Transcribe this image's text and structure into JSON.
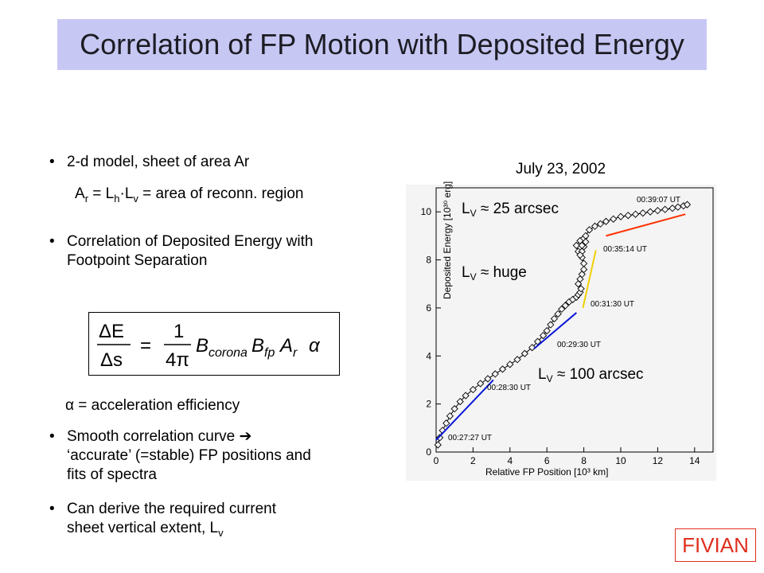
{
  "title": "Correlation of FP Motion with Deposited Energy",
  "bullets": {
    "b1": "2-d model, sheet of area Ar",
    "b1_sub_pre": "A",
    "b1_sub_r": "r",
    "b1_sub_mid": " = L",
    "b1_sub_h": "h",
    "b1_sub_dot": "·L",
    "b1_sub_v": "v",
    "b1_sub_post": " = area of reconn. region",
    "b2_line1": "Correlation of Deposited Energy with",
    "b2_line2": "Footpoint Separation",
    "alpha_line": "α = acceleration efficiency",
    "b3_line1": "Smooth correlation curve ➔",
    "b3_line2": "‘accurate’ (=stable) FP positions and",
    "b3_line3": "fits of spectra",
    "b4_line1": "Can derive the required current",
    "b4_line2": "sheet vertical extent, L",
    "b4_sub": "v"
  },
  "formula": {
    "lhs_num": "ΔE",
    "lhs_den": "Δs",
    "eq": "=",
    "frac_num": "1",
    "frac_den": "4π",
    "B": "B",
    "B_sub1": "corona",
    "B2": "B",
    "B_sub2": "fp",
    "A": "A",
    "A_sub": "r",
    "alpha": "α"
  },
  "chart_title": "July 23, 2002",
  "annotations": {
    "lv1_pre": "L",
    "lv1_sub": "V",
    "lv1_post": " ≈ 25 arcsec",
    "lv2_pre": "L",
    "lv2_sub": "V",
    "lv2_post": " ≈ huge",
    "lv3_pre": "L",
    "lv3_sub": "V",
    "lv3_post": " ≈ 100 arcsec",
    "t1": "00:39:07 UT",
    "t2": "00:35:14 UT",
    "t3": "00:31:30 UT",
    "t4": "00:29:30 UT",
    "t5": "00:28:30 UT",
    "t6": "00:27:27 UT"
  },
  "fivian": "FIVIAN",
  "chart_data": {
    "type": "scatter",
    "title": "",
    "xlabel": "Relative FP Position  [10³ km]",
    "ylabel": "Deposited Energy  [10³⁰ erg]",
    "xlim": [
      0,
      15
    ],
    "ylim": [
      0,
      11
    ],
    "xticks": [
      "0",
      "2",
      "4",
      "6",
      "8",
      "10",
      "12",
      "14"
    ],
    "yticks": [
      "0",
      "2",
      "4",
      "6",
      "8",
      "10"
    ],
    "series": [
      {
        "x": [
          0.1,
          0.2,
          0.35,
          0.55,
          0.75,
          1.0,
          1.3,
          1.6,
          2.0,
          2.4,
          2.8,
          3.2,
          3.6,
          4.0,
          4.4,
          4.8,
          5.2,
          5.5,
          5.8,
          6.0,
          6.2,
          6.4,
          6.6,
          6.8,
          7.0,
          7.2,
          7.4,
          7.6,
          7.7,
          7.8,
          7.85,
          7.7,
          7.8,
          7.9,
          8.0,
          8.0,
          7.9,
          7.7,
          7.6,
          7.8,
          8.0,
          8.1,
          8.0,
          7.9,
          7.8,
          7.9,
          8.1,
          8.3,
          8.6,
          8.9,
          9.2,
          9.6,
          10.0,
          10.4,
          10.8,
          11.2,
          11.6,
          12.0,
          12.4,
          12.8,
          13.1,
          13.4,
          13.6
        ],
        "y": [
          0.3,
          0.6,
          0.9,
          1.2,
          1.5,
          1.8,
          2.1,
          2.35,
          2.6,
          2.85,
          3.05,
          3.25,
          3.45,
          3.65,
          3.85,
          4.1,
          4.35,
          4.6,
          4.85,
          5.05,
          5.3,
          5.55,
          5.75,
          5.95,
          6.1,
          6.25,
          6.35,
          6.45,
          6.55,
          6.65,
          6.8,
          7.0,
          7.2,
          7.4,
          7.6,
          7.85,
          8.1,
          8.35,
          8.6,
          8.8,
          8.9,
          8.75,
          8.55,
          8.35,
          8.2,
          8.6,
          9.0,
          9.25,
          9.4,
          9.5,
          9.6,
          9.7,
          9.8,
          9.85,
          9.9,
          9.95,
          10.0,
          10.05,
          10.1,
          10.15,
          10.2,
          10.25,
          10.3
        ]
      }
    ],
    "fit_lines_colors": [
      "#0a18d8",
      "#0a18d8",
      "#f0d000",
      "#ff3000"
    ],
    "grid": false,
    "legend": "none"
  }
}
